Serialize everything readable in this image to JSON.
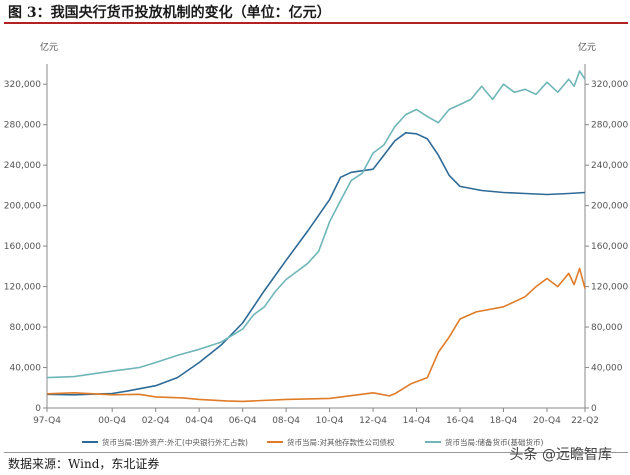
{
  "figure": {
    "title": "图 3：我国央行货币投放机制的变化（单位：亿元）",
    "source": "数据来源：Wind，东北证券",
    "watermark": "头条 @远瞻智库"
  },
  "chart_data": {
    "type": "line",
    "ylabel_left": "亿元",
    "ylabel_right": "亿元",
    "ylim": [
      0,
      340000
    ],
    "yticks": [
      0,
      40000,
      80000,
      120000,
      160000,
      200000,
      240000,
      280000,
      320000
    ],
    "ytick_labels": [
      "0",
      "40,000",
      "80,000",
      "120,000",
      "160,000",
      "200,000",
      "240,000",
      "280,000",
      "320,000"
    ],
    "xlim": [
      1997.75,
      2022.5
    ],
    "xticks": [
      1997.75,
      2000.75,
      2002.75,
      2004.75,
      2006.75,
      2008.75,
      2010.75,
      2012.75,
      2014.75,
      2016.75,
      2018.75,
      2020.75,
      2022.5
    ],
    "xtick_labels": [
      "97-Q4",
      "00-Q4",
      "02-Q4",
      "04-Q4",
      "06-Q4",
      "08-Q4",
      "10-Q4",
      "12-Q4",
      "14-Q4",
      "16-Q4",
      "18-Q4",
      "20-Q4",
      "22-Q2"
    ],
    "grid": false,
    "legend": "bottom",
    "series": [
      {
        "name": "货币当局:国外资产:外汇(中央银行外汇占款)",
        "color": "#2e6a96",
        "x": [
          1997.75,
          1999.0,
          2000.75,
          2001.5,
          2002.75,
          2003.75,
          2004.75,
          2005.75,
          2006.75,
          2007.75,
          2008.75,
          2009.75,
          2010.75,
          2011.25,
          2011.75,
          2012.75,
          2013.25,
          2013.75,
          2014.25,
          2014.75,
          2015.25,
          2015.75,
          2016.25,
          2016.75,
          2017.75,
          2018.75,
          2019.75,
          2020.75,
          2021.75,
          2022.5
        ],
        "values": [
          13500,
          13000,
          14300,
          17000,
          22000,
          30000,
          45000,
          62000,
          84000,
          116000,
          146000,
          175000,
          206000,
          228000,
          233000,
          236000,
          250000,
          264000,
          272000,
          271000,
          266000,
          250000,
          230000,
          219000,
          215000,
          213000,
          212000,
          211000,
          212000,
          213000
        ]
      },
      {
        "name": "货币当局:对其他存款性公司债权",
        "color": "#e07b28",
        "x": [
          1997.75,
          1999.0,
          2000.75,
          2002.0,
          2002.75,
          2004.0,
          2004.75,
          2006.0,
          2006.75,
          2008.75,
          2010.75,
          2012.75,
          2013.5,
          2013.75,
          2014.5,
          2015.25,
          2015.75,
          2016.25,
          2016.75,
          2017.5,
          2018.75,
          2019.75,
          2020.25,
          2020.75,
          2021.25,
          2021.75,
          2022.0,
          2022.25,
          2022.5
        ],
        "values": [
          14000,
          15000,
          13000,
          13500,
          11000,
          10000,
          8500,
          7000,
          6500,
          8500,
          9500,
          15000,
          12000,
          14000,
          24000,
          30000,
          55000,
          70000,
          88000,
          95000,
          100000,
          110000,
          120000,
          128000,
          120000,
          133000,
          122000,
          138000,
          118000
        ]
      },
      {
        "name": "货币当局:储备货币(基础货币)",
        "color": "#6fb6b8",
        "x": [
          1997.75,
          1999.0,
          2000.75,
          2002.0,
          2002.75,
          2003.75,
          2004.75,
          2005.75,
          2006.75,
          2007.25,
          2007.75,
          2008.25,
          2008.75,
          2009.25,
          2009.75,
          2010.25,
          2010.75,
          2011.25,
          2011.75,
          2012.25,
          2012.75,
          2013.25,
          2013.75,
          2014.25,
          2014.75,
          2015.25,
          2015.75,
          2016.25,
          2016.75,
          2017.25,
          2017.75,
          2018.25,
          2018.75,
          2019.25,
          2019.75,
          2020.25,
          2020.75,
          2021.25,
          2021.75,
          2022.0,
          2022.25,
          2022.5
        ],
        "values": [
          30000,
          31000,
          36500,
          40000,
          45000,
          52000,
          58000,
          65000,
          78000,
          92000,
          100000,
          115000,
          127000,
          135000,
          143000,
          155000,
          184000,
          205000,
          225000,
          232000,
          252000,
          260000,
          278000,
          290000,
          295000,
          288000,
          282000,
          295000,
          300000,
          305000,
          318000,
          305000,
          320000,
          312000,
          315000,
          310000,
          322000,
          312000,
          325000,
          318000,
          333000,
          325000
        ]
      }
    ]
  }
}
